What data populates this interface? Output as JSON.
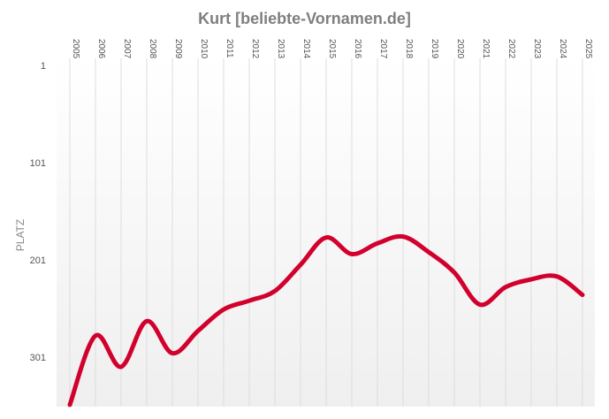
{
  "chart_data": {
    "type": "line",
    "title": "Kurt [beliebte-Vornamen.de]",
    "ylabel": "PLATZ",
    "xlabel": "",
    "y_inverted": true,
    "ylim": [
      1,
      350
    ],
    "y_ticks": [
      "1",
      "101",
      "201",
      "301"
    ],
    "y_tick_values": [
      1,
      101,
      201,
      301
    ],
    "grid": true,
    "x": [
      "2005",
      "2006",
      "2007",
      "2008",
      "2009",
      "2010",
      "2011",
      "2012",
      "2013",
      "2014",
      "2015",
      "2016",
      "2017",
      "2018",
      "2019",
      "2020",
      "2021",
      "2022",
      "2023",
      "2024",
      "2025"
    ],
    "series": [
      {
        "name": "",
        "values": [
          350,
          279,
          311,
          264,
          297,
          274,
          252,
          243,
          233,
          206,
          178,
          195,
          184,
          177,
          193,
          214,
          247,
          229,
          221,
          218,
          237
        ]
      }
    ],
    "colors": {
      "line": "#d2002c",
      "grid": "#dddddd",
      "title": "#7f7f7f",
      "plot_gradient_top": "#ffffff",
      "plot_gradient_bottom": "#efefef"
    }
  }
}
